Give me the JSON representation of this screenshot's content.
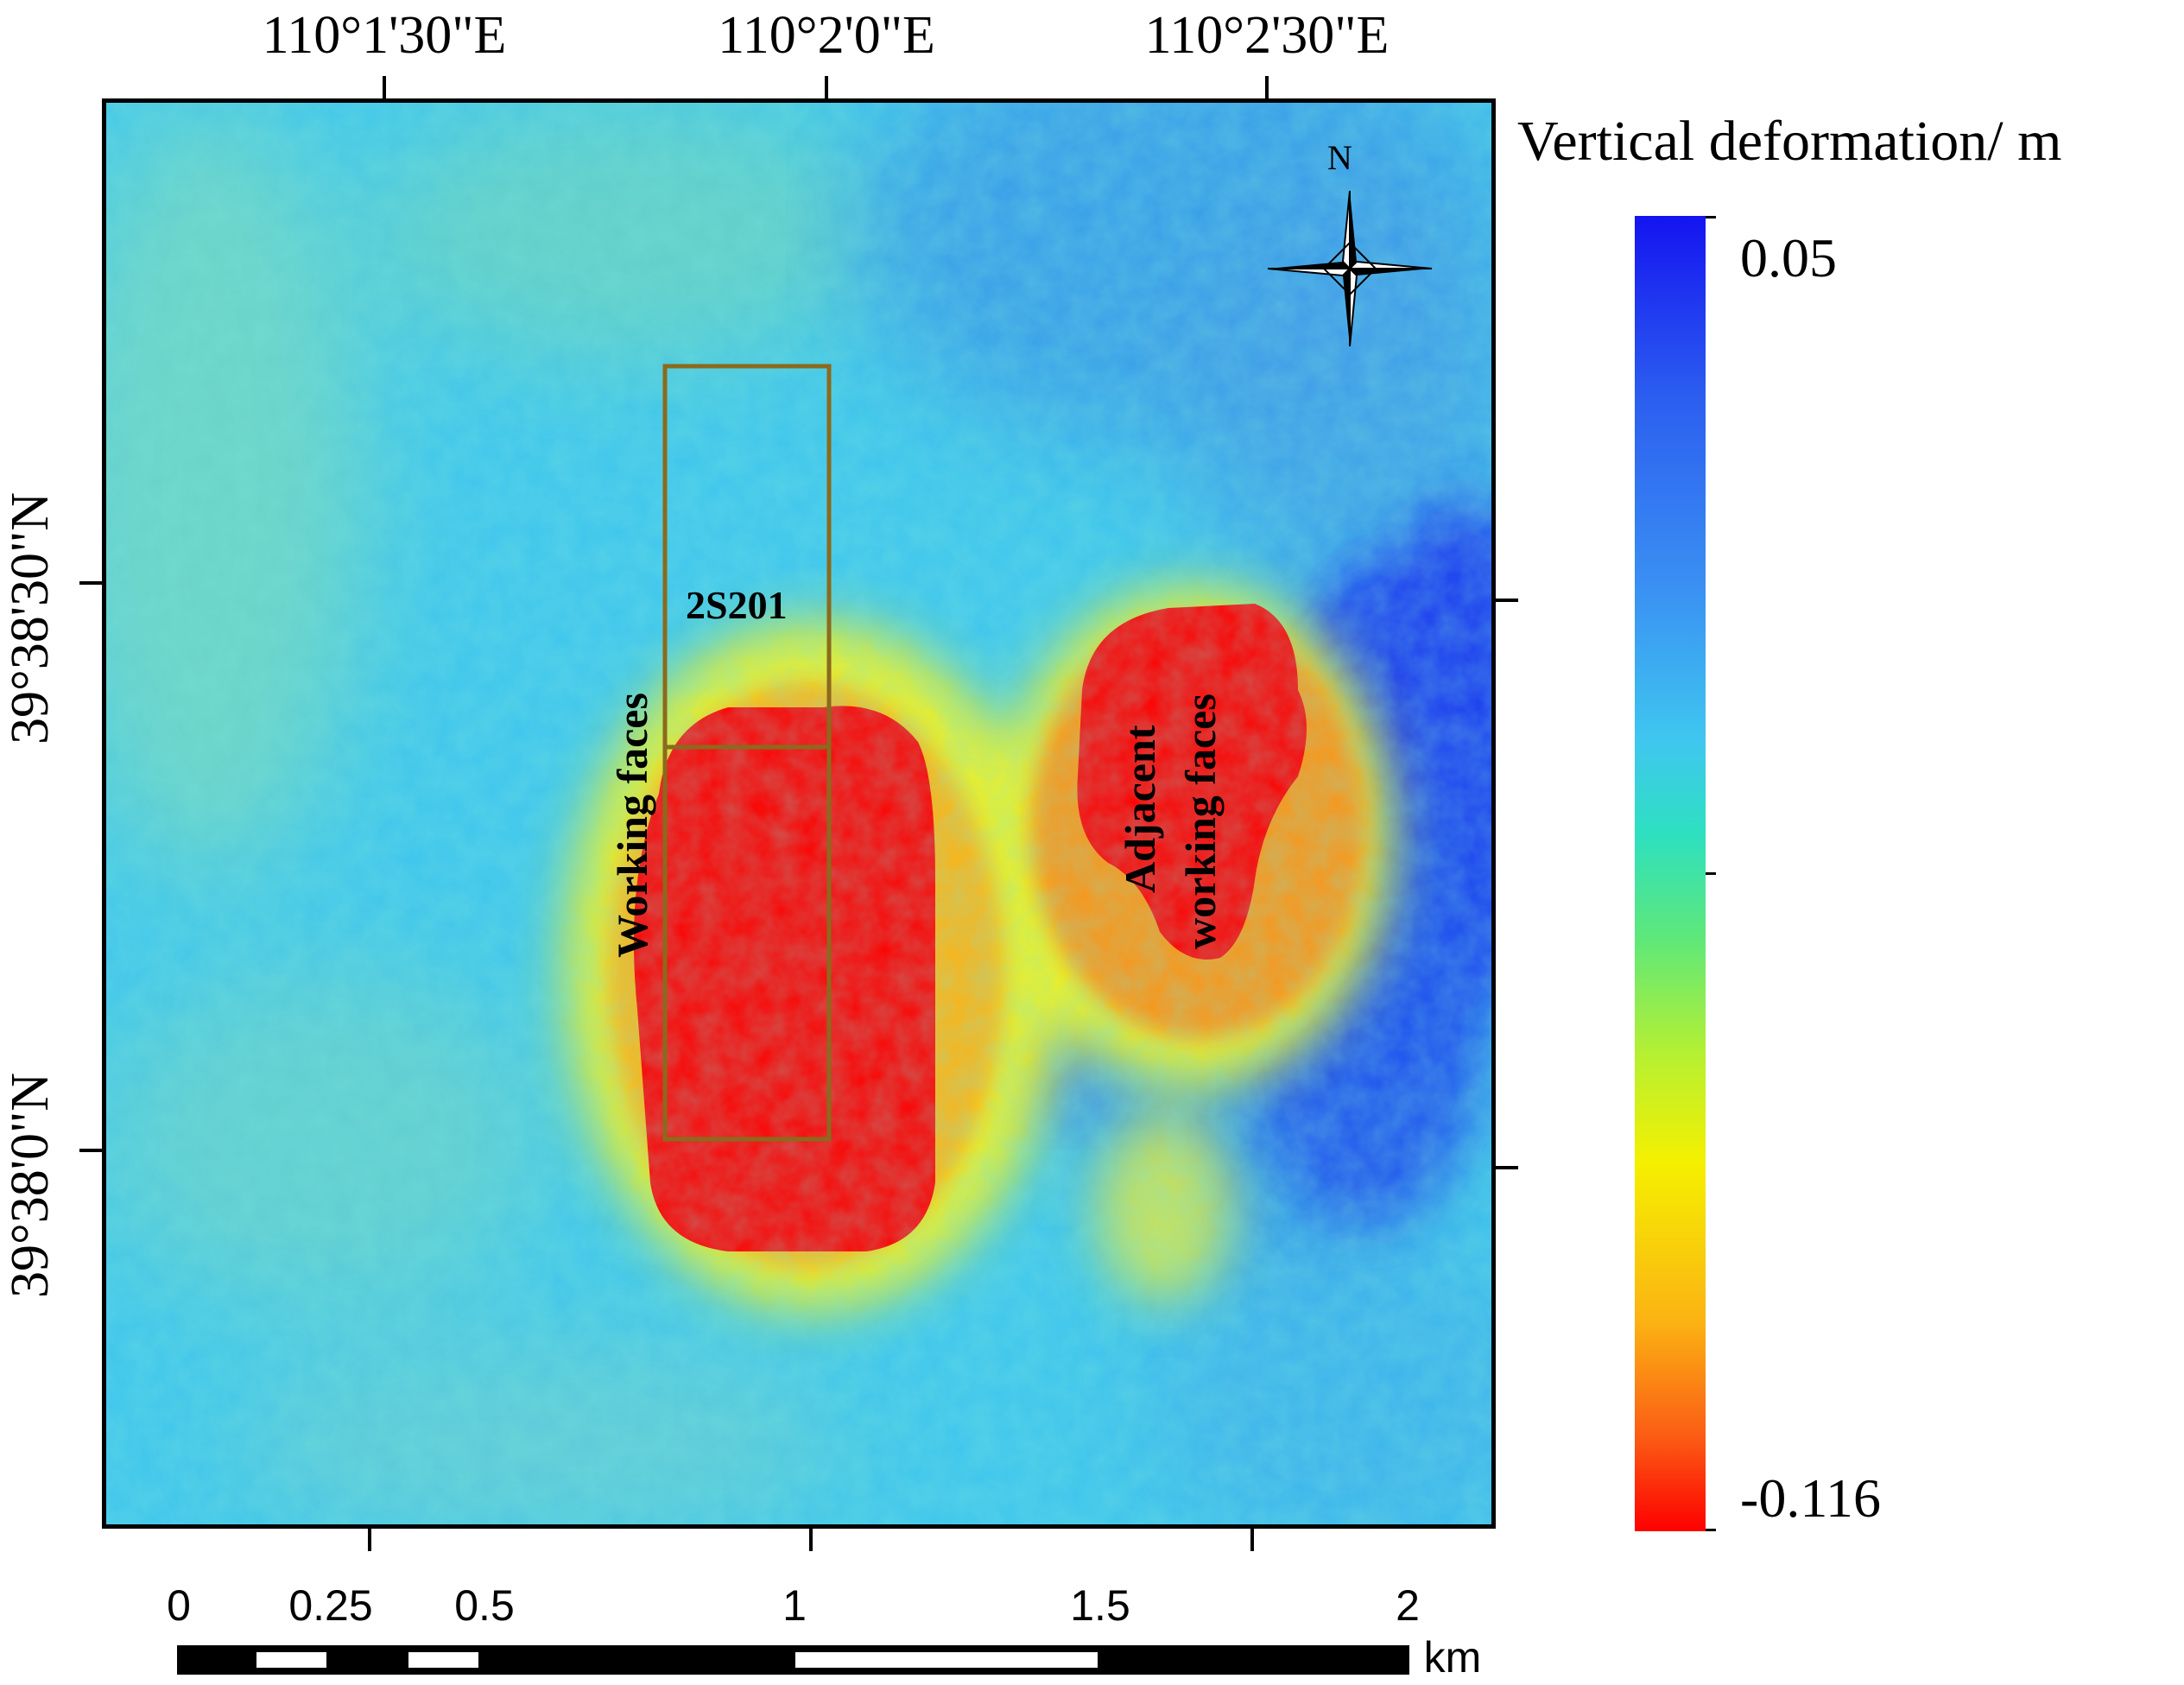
{
  "map": {
    "longitude_labels": [
      "110°1'30\"E",
      "110°2'0\"E",
      "110°2'30\"E"
    ],
    "latitude_labels": [
      "39°38'30\"N",
      "39°38'0\"N"
    ],
    "north_arrow_label": "N",
    "annotations": {
      "panel_id": "2S201",
      "working_faces": "Working  faces",
      "adjacent_line1": "Adjacent",
      "adjacent_line2": "working faces"
    }
  },
  "legend": {
    "title": "Vertical deformation/ m",
    "max_value": "0.05",
    "min_value": "-0.116",
    "colors": {
      "max": "#1414f0",
      "min": "#fe0000",
      "panel_outline": "#8b6a1d"
    }
  },
  "scale_bar": {
    "labels": [
      "0",
      "0.25",
      "0.5",
      "1",
      "1.5",
      "2"
    ],
    "unit": "km"
  }
}
